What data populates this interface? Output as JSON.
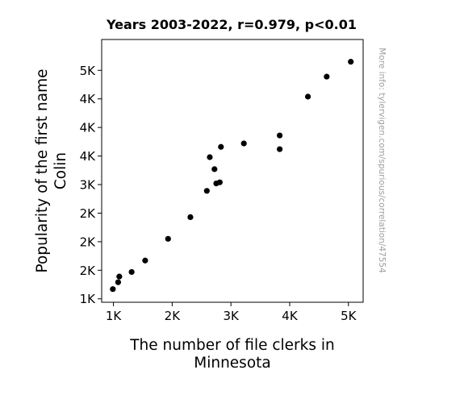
{
  "chart_data": {
    "type": "scatter",
    "title": "Years 2003-2022, r=0.979, p<0.01",
    "xlabel_lines": [
      "The number of file clerks in",
      "Minnesota"
    ],
    "ylabel_lines": [
      "Popularity of the first name",
      "Colin"
    ],
    "watermark": "More info: tylervigen.com/spurious/correlation/47554",
    "xlim": [
      800,
      5250
    ],
    "ylim": [
      940,
      5540
    ],
    "x_ticks": [
      {
        "value": 1000,
        "label": "1K"
      },
      {
        "value": 2000,
        "label": "2K"
      },
      {
        "value": 3000,
        "label": "3K"
      },
      {
        "value": 4000,
        "label": "4K"
      },
      {
        "value": 5000,
        "label": "5K"
      }
    ],
    "y_ticks": [
      {
        "value": 1000,
        "label": "1K"
      },
      {
        "value": 1500,
        "label": "2K"
      },
      {
        "value": 2000,
        "label": "2K"
      },
      {
        "value": 2500,
        "label": "2K"
      },
      {
        "value": 3000,
        "label": "3K"
      },
      {
        "value": 3500,
        "label": "4K"
      },
      {
        "value": 4000,
        "label": "4K"
      },
      {
        "value": 4500,
        "label": "4K"
      },
      {
        "value": 5000,
        "label": "5K"
      }
    ],
    "grid": false,
    "marker_color": "#000000",
    "points": [
      {
        "x": 990,
        "y": 1170
      },
      {
        "x": 1080,
        "y": 1290
      },
      {
        "x": 1100,
        "y": 1390
      },
      {
        "x": 1310,
        "y": 1470
      },
      {
        "x": 1540,
        "y": 1670
      },
      {
        "x": 1930,
        "y": 2050
      },
      {
        "x": 2310,
        "y": 2430
      },
      {
        "x": 2590,
        "y": 2890
      },
      {
        "x": 2640,
        "y": 3480
      },
      {
        "x": 2720,
        "y": 3270
      },
      {
        "x": 2750,
        "y": 3020
      },
      {
        "x": 2810,
        "y": 3040
      },
      {
        "x": 2830,
        "y": 3660
      },
      {
        "x": 3220,
        "y": 3720
      },
      {
        "x": 3830,
        "y": 3860
      },
      {
        "x": 3830,
        "y": 3620
      },
      {
        "x": 4310,
        "y": 4540
      },
      {
        "x": 4630,
        "y": 4890
      },
      {
        "x": 5040,
        "y": 5150
      }
    ]
  }
}
